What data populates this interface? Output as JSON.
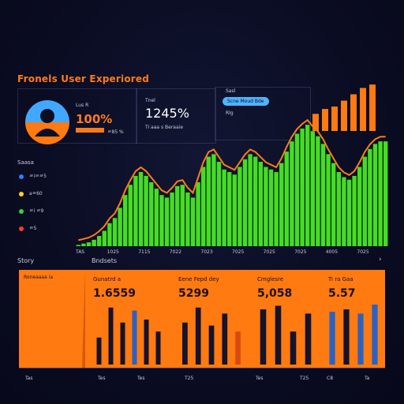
{
  "header": {
    "title": "Fronels User Experiored"
  },
  "profile": {
    "label": "Lus R",
    "value": "100%",
    "sublabel": "ㄹ85 %"
  },
  "metric2": {
    "label": "Tnel",
    "value": "1245%",
    "sublabel": "Ti aaa s Beraaie"
  },
  "metric3": {
    "label": "Sasl",
    "pill": "Scne Moud Bde",
    "sublabel": "Rlg"
  },
  "sidebar": {
    "heading": "Saasa",
    "items": [
      {
        "label": "ㄹiㄹㄹ5",
        "color": "#2a7fff"
      },
      {
        "label": "aㄹ60",
        "color": "#ffd21a"
      },
      {
        "label": "ㄹi ㄹ9",
        "color": "#2fd04a"
      },
      {
        "label": "ㄹS",
        "color": "#ff3b2b"
      }
    ],
    "footer_label": "Story"
  },
  "main_chart": {
    "label": "Bndsets",
    "x_ticks": [
      "TAS",
      "1025",
      "7115",
      "7022",
      "7023",
      "7025",
      "7025",
      "7025",
      "4005",
      "7025"
    ],
    "area_color": "#44dd22",
    "line_color": "#ff7a1a"
  },
  "bottom": {
    "left_label": "Roneaaaa ia",
    "cards": [
      {
        "title": "Gunatrd a",
        "value": "1.6559"
      },
      {
        "title": "Eene Fepd dey",
        "value": "5299"
      },
      {
        "title": "Cmglesre",
        "value": "5,058"
      },
      {
        "title": "Ti ra Gaa",
        "value": "5.57"
      }
    ],
    "x_ticks": [
      "Tas",
      "Tes",
      "Tes",
      "T25",
      "Tes",
      "T25",
      "C8",
      "Ta"
    ]
  },
  "chart_data": [
    {
      "type": "area",
      "title": "",
      "series": [
        {
          "name": "",
          "values": [
            1,
            2,
            3,
            5,
            8,
            12,
            18,
            22,
            30,
            40,
            48,
            55,
            58,
            55,
            50,
            45,
            40,
            38,
            42,
            47,
            48,
            42,
            38,
            50,
            62,
            70,
            72,
            66,
            60,
            58,
            56,
            62,
            68,
            72,
            70,
            66,
            62,
            60,
            58,
            65,
            74,
            82,
            88,
            92,
            95,
            90,
            86,
            80,
            72,
            65,
            58,
            54,
            52,
            55,
            62,
            70,
            76,
            80,
            82,
            82
          ]
        }
      ]
    },
    {
      "type": "bar",
      "title": "",
      "series": [
        {
          "name": "",
          "values": [
            40,
            70,
            55,
            35,
            60,
            45
          ]
        }
      ]
    }
  ]
}
